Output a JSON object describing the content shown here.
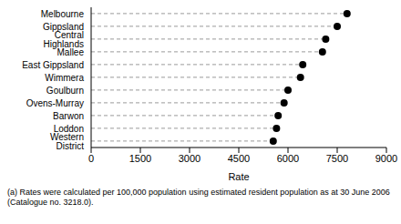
{
  "chart_data": {
    "type": "dot",
    "orientation": "horizontal",
    "categories": [
      "Melbourne",
      "Gippsland",
      "Central Highlands",
      "Mallee",
      "East Gippsland",
      "Wimmera",
      "Goulburn",
      "Ovens-Murray",
      "Barwon",
      "Loddon",
      "Western District"
    ],
    "values": [
      7800,
      7500,
      7150,
      7050,
      6450,
      6380,
      6000,
      5880,
      5700,
      5650,
      5550
    ],
    "x_label": "Rate",
    "xlim": [
      0,
      9000
    ],
    "xticks": [
      0,
      1500,
      3000,
      4500,
      6000,
      7500,
      9000
    ],
    "color": "#000000",
    "marker": "circle",
    "line_style": "dashed",
    "grid": false,
    "annotations": [
      "(a) Rates were calculated per 100,000 population using estimated resident population as at 30 June 2006 (Catalogue no. 3218.0)."
    ]
  }
}
